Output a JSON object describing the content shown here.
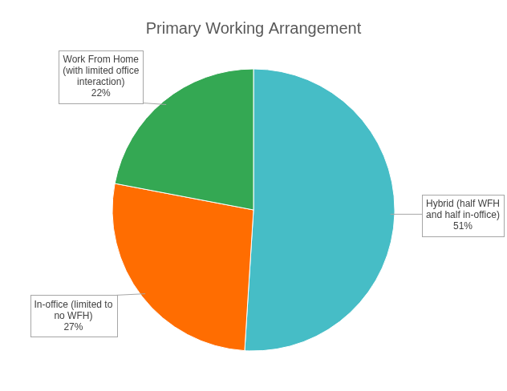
{
  "chart_data": {
    "type": "pie",
    "title": "Primary Working Arrangement",
    "categories": [
      "Hybrid (half WFH and half in-office)",
      "In-office (limited to no WFH)",
      "Work From Home (with limited office interaction)"
    ],
    "values": [
      51,
      27,
      22
    ],
    "value_labels": [
      "51%",
      "27%",
      "22%"
    ],
    "colors": [
      "#46bdc6",
      "#ff6d01",
      "#34a853"
    ],
    "data_labels": true
  }
}
